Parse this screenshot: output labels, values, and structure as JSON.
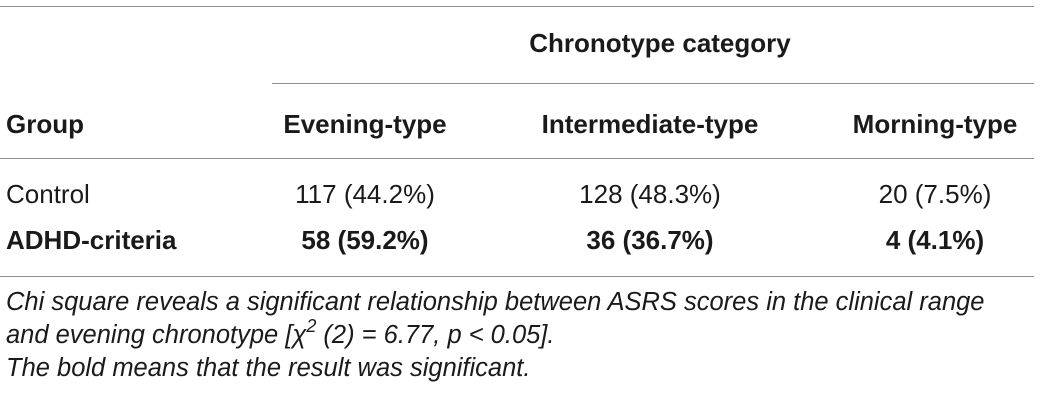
{
  "table": {
    "spanner": "Chronotype category",
    "group_header": "Group",
    "columns": [
      "Evening-type",
      "Intermediate-type",
      "Morning-type"
    ],
    "rows": [
      {
        "group": "Control",
        "values": [
          "117 (44.2%)",
          "128 (48.3%)",
          "20 (7.5%)"
        ],
        "bold": false
      },
      {
        "group": "ADHD-criteria",
        "values": [
          "58 (59.2%)",
          "36 (36.7%)",
          "4 (4.1%)"
        ],
        "bold": true
      }
    ]
  },
  "footnote": {
    "part1": "Chi square reveals a significant relationship between ASRS scores in the clinical range and evening chronotype [χ",
    "superscript": "2",
    "part2": " (2) = 6.77, p < 0.05].",
    "line2": "The bold means that the result was significant."
  }
}
